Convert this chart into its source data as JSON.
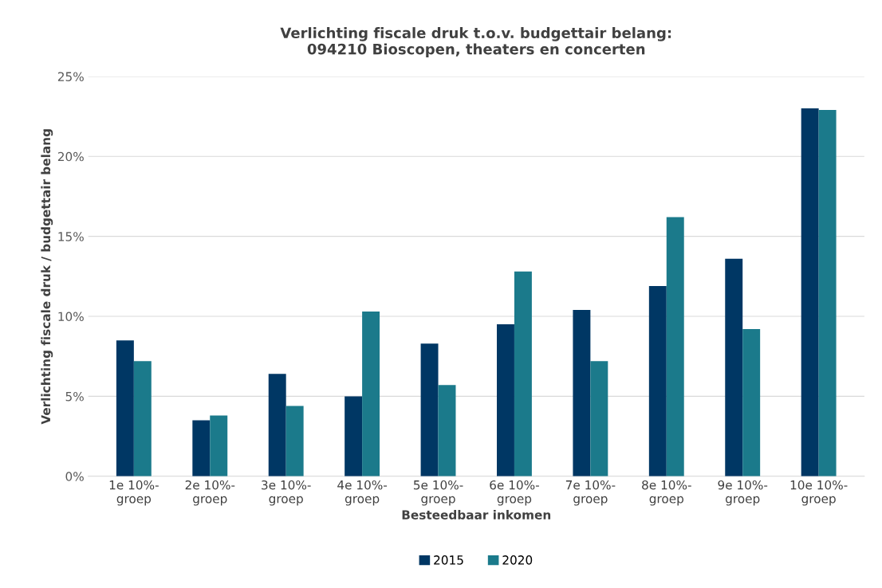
{
  "chart_data": {
    "type": "bar",
    "title": "Verlichting fiscale druk t.o.v. budgettair belang:\n094210 Bioscopen, theaters en concerten",
    "xlabel": "Besteedbaar inkomen",
    "ylabel": "Verlichting fiscale druk / budgettair belang",
    "categories": [
      "1e 10%-\ngroep",
      "2e 10%-\ngroep",
      "3e 10%-\ngroep",
      "4e 10%-\ngroep",
      "5e 10%-\ngroep",
      "6e 10%-\ngroep",
      "7e 10%-\ngroep",
      "8e 10%-\ngroep",
      "9e 10%-\ngroep",
      "10e 10%-\ngroep"
    ],
    "series": [
      {
        "name": "2015",
        "color": "#003764",
        "values": [
          8.5,
          3.5,
          6.4,
          5.0,
          8.3,
          9.5,
          10.4,
          11.9,
          13.6,
          23.0
        ]
      },
      {
        "name": "2020",
        "color": "#1b7a8b",
        "values": [
          7.2,
          3.8,
          4.4,
          10.3,
          5.7,
          12.8,
          7.2,
          16.2,
          9.2,
          22.9
        ]
      }
    ],
    "ylim": [
      0,
      25
    ],
    "yticks": [
      {
        "value": 0,
        "label": "0%"
      },
      {
        "value": 5,
        "label": "5%"
      },
      {
        "value": 10,
        "label": "10%"
      },
      {
        "value": 15,
        "label": "15%"
      },
      {
        "value": 20,
        "label": "20%"
      },
      {
        "value": 25,
        "label": "25%"
      }
    ],
    "grid": "y",
    "legend": "bottom"
  }
}
